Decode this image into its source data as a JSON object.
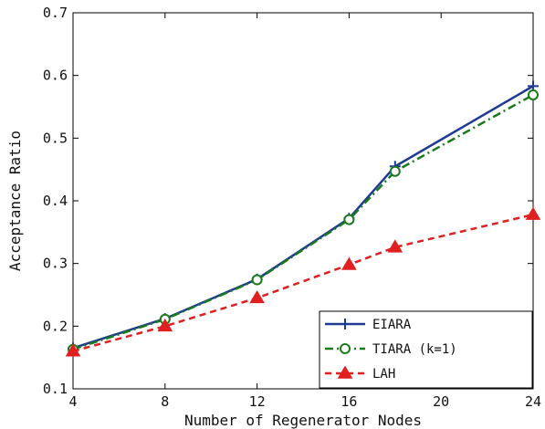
{
  "chart_data": {
    "type": "line",
    "title": "",
    "xlabel": "Number of Regenerator Nodes",
    "ylabel": "Acceptance Ratio",
    "xlim": [
      4,
      24
    ],
    "ylim": [
      0.1,
      0.7
    ],
    "xticks": [
      4,
      8,
      12,
      16,
      20,
      24
    ],
    "xtick_labels": [
      "4",
      "8",
      "12",
      "16",
      "20",
      "24"
    ],
    "yticks": [
      0.1,
      0.2,
      0.3,
      0.4,
      0.5,
      0.6,
      0.7
    ],
    "ytick_labels": [
      "0.1",
      "0.2",
      "0.3",
      "0.4",
      "0.5",
      "0.6",
      "0.7"
    ],
    "grid": false,
    "legend_position": "bottom-right",
    "x": [
      4,
      8,
      12,
      16,
      18,
      24
    ],
    "series": [
      {
        "name": "EIARA",
        "values": [
          0.165,
          0.212,
          0.275,
          0.372,
          0.455,
          0.583
        ],
        "color": "#1f3a93",
        "marker": "plus",
        "dash": "solid"
      },
      {
        "name": "TIARA (k=1)",
        "values": [
          0.163,
          0.211,
          0.274,
          0.37,
          0.447,
          0.569
        ],
        "color": "#1b7a1b",
        "marker": "circle",
        "dash": "dashdot"
      },
      {
        "name": "LAH",
        "values": [
          0.16,
          0.2,
          0.245,
          0.298,
          0.326,
          0.378
        ],
        "color": "#e02020",
        "marker": "triangle",
        "dash": "dashed"
      }
    ]
  }
}
